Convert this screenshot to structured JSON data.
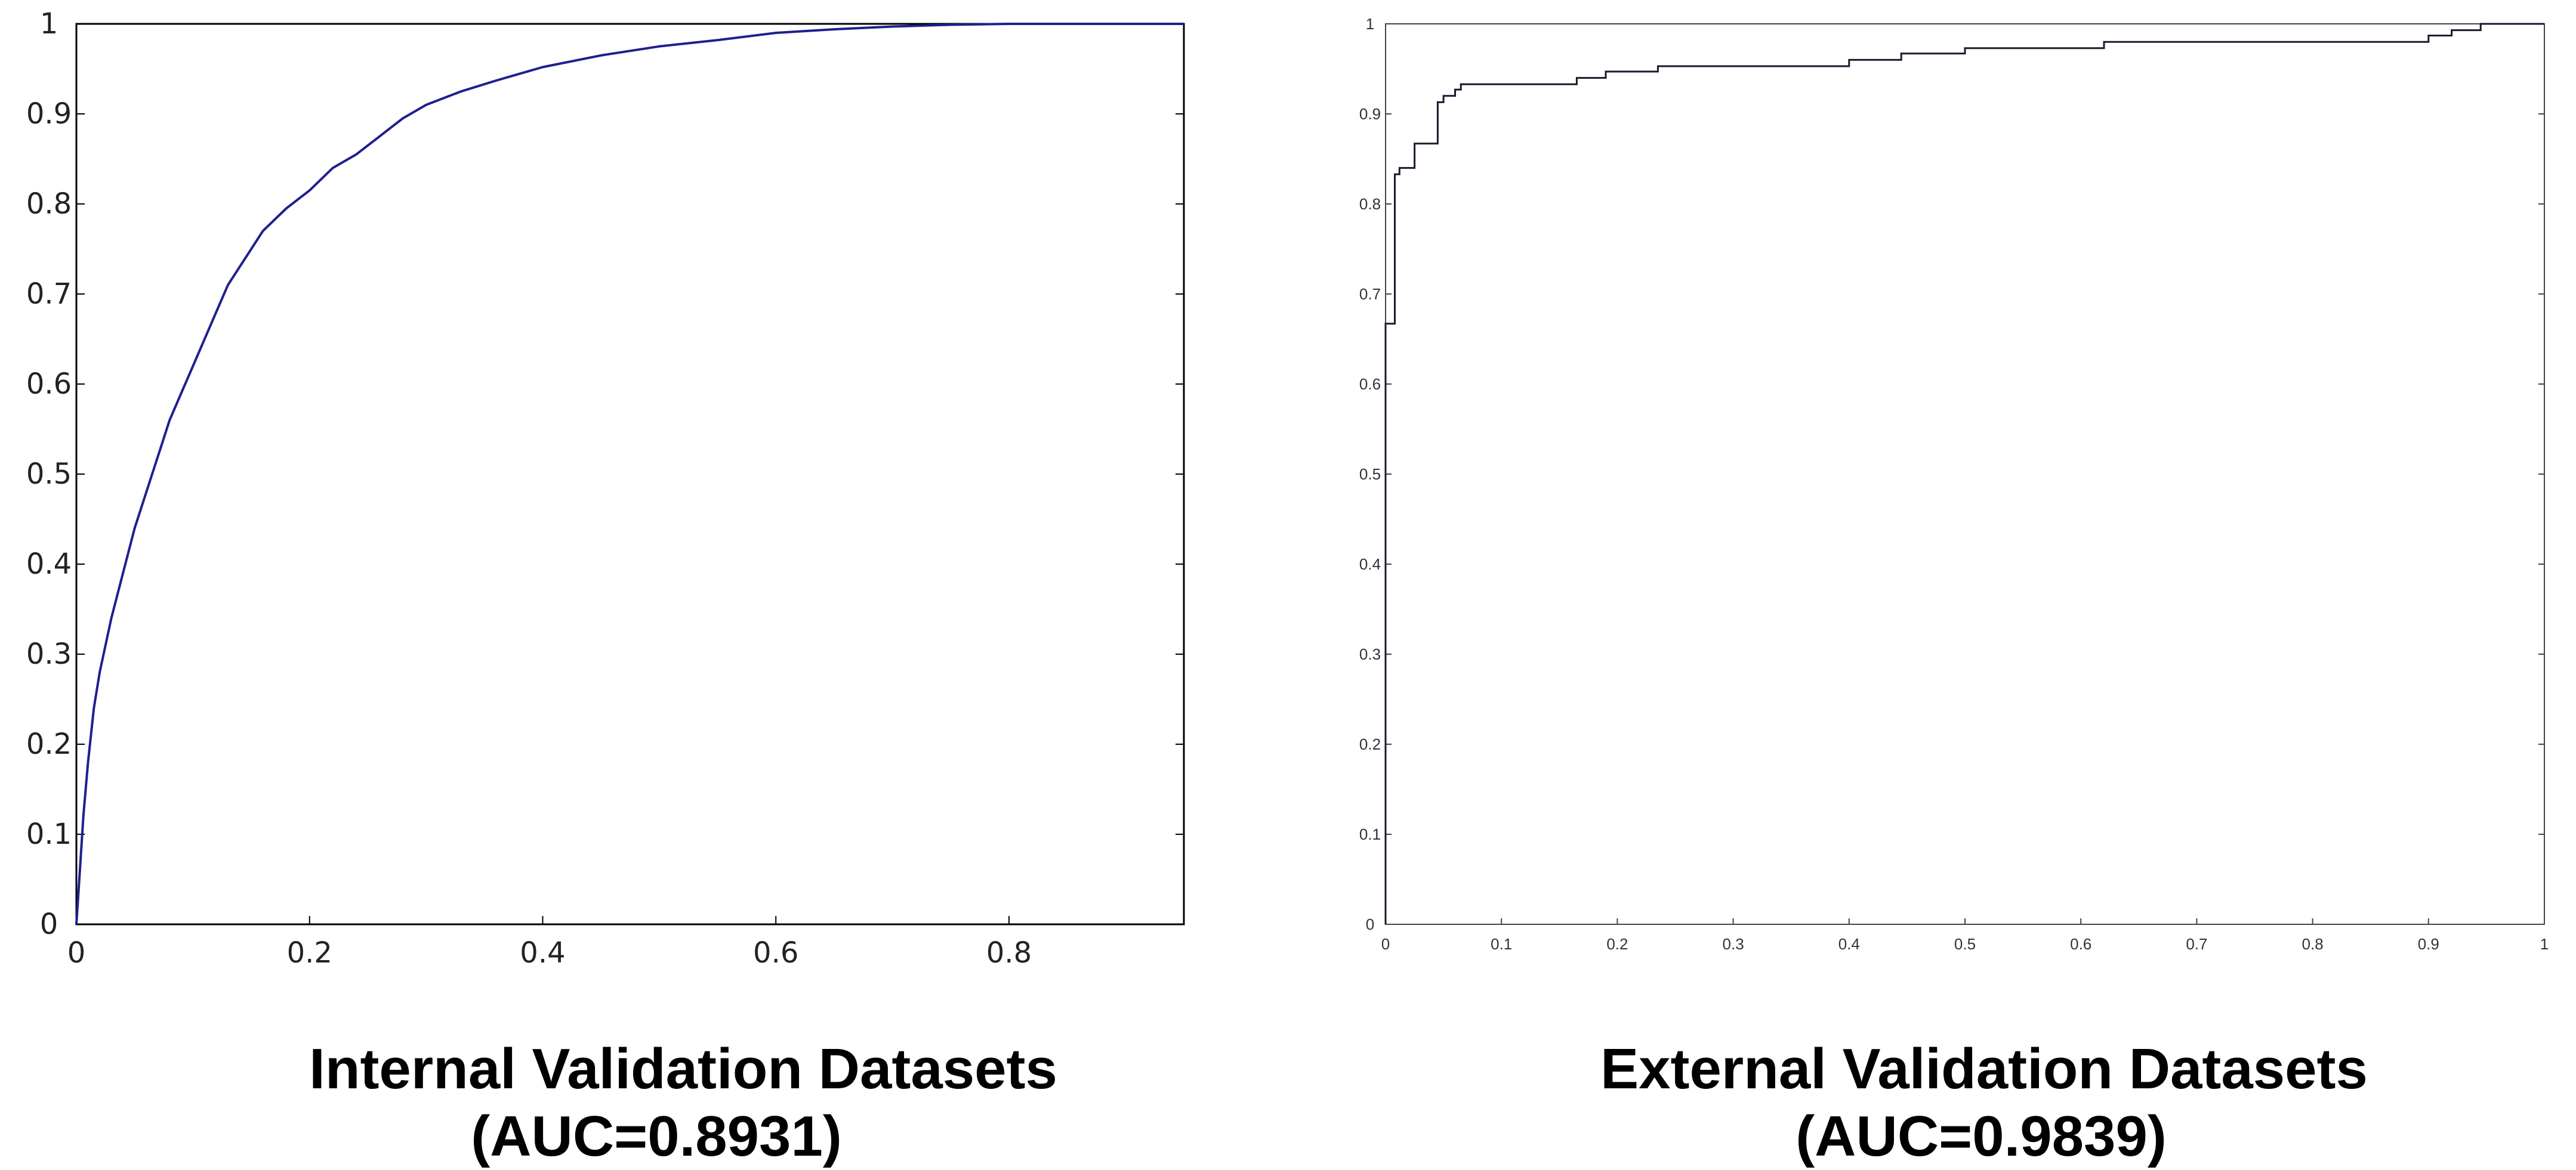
{
  "chart_data": [
    {
      "type": "line",
      "title": "Internal Validation Datasets",
      "subtitle": "(AUC=0.8931)",
      "xlabel": "",
      "ylabel": "",
      "xlim": [
        0,
        0.95
      ],
      "ylim": [
        0,
        1
      ],
      "grid": false,
      "x_ticks": [
        {
          "value": 0,
          "label": "0"
        },
        {
          "value": 0.2,
          "label": "0.2"
        },
        {
          "value": 0.4,
          "label": "0.4"
        },
        {
          "value": 0.6,
          "label": "0.6"
        },
        {
          "value": 0.8,
          "label": "0.8"
        }
      ],
      "y_ticks": [
        {
          "value": 0,
          "label": "0"
        },
        {
          "value": 0.1,
          "label": "0.1"
        },
        {
          "value": 0.2,
          "label": "0.2"
        },
        {
          "value": 0.3,
          "label": "0.3"
        },
        {
          "value": 0.4,
          "label": "0.4"
        },
        {
          "value": 0.5,
          "label": "0.5"
        },
        {
          "value": 0.6,
          "label": "0.6"
        },
        {
          "value": 0.7,
          "label": "0.7"
        },
        {
          "value": 0.8,
          "label": "0.8"
        },
        {
          "value": 0.9,
          "label": "0.9"
        },
        {
          "value": 1,
          "label": "1"
        }
      ],
      "series": [
        {
          "color": "#1f1f8f",
          "step": false,
          "points": [
            [
              0,
              0
            ],
            [
              0.003,
              0.06
            ],
            [
              0.006,
              0.12
            ],
            [
              0.01,
              0.18
            ],
            [
              0.015,
              0.24
            ],
            [
              0.02,
              0.28
            ],
            [
              0.03,
              0.34
            ],
            [
              0.04,
              0.39
            ],
            [
              0.05,
              0.44
            ],
            [
              0.06,
              0.48
            ],
            [
              0.07,
              0.52
            ],
            [
              0.08,
              0.56
            ],
            [
              0.09,
              0.59
            ],
            [
              0.1,
              0.62
            ],
            [
              0.11,
              0.65
            ],
            [
              0.12,
              0.68
            ],
            [
              0.13,
              0.71
            ],
            [
              0.14,
              0.73
            ],
            [
              0.15,
              0.75
            ],
            [
              0.16,
              0.77
            ],
            [
              0.18,
              0.795
            ],
            [
              0.2,
              0.815
            ],
            [
              0.22,
              0.84
            ],
            [
              0.24,
              0.855
            ],
            [
              0.26,
              0.875
            ],
            [
              0.28,
              0.895
            ],
            [
              0.3,
              0.91
            ],
            [
              0.33,
              0.925
            ],
            [
              0.36,
              0.937
            ],
            [
              0.4,
              0.952
            ],
            [
              0.45,
              0.965
            ],
            [
              0.5,
              0.975
            ],
            [
              0.55,
              0.982
            ],
            [
              0.6,
              0.99
            ],
            [
              0.65,
              0.994
            ],
            [
              0.7,
              0.997
            ],
            [
              0.75,
              0.999
            ],
            [
              0.8,
              1.0
            ],
            [
              0.95,
              1.0
            ]
          ]
        }
      ]
    },
    {
      "type": "line",
      "title": "External Validation Datasets",
      "subtitle": "(AUC=0.9839)",
      "xlabel": "",
      "ylabel": "",
      "xlim": [
        0,
        1
      ],
      "ylim": [
        0,
        1
      ],
      "grid": false,
      "x_ticks": [
        {
          "value": 0,
          "label": "0"
        },
        {
          "value": 0.1,
          "label": "0.1"
        },
        {
          "value": 0.2,
          "label": "0.2"
        },
        {
          "value": 0.3,
          "label": "0.3"
        },
        {
          "value": 0.4,
          "label": "0.4"
        },
        {
          "value": 0.5,
          "label": "0.5"
        },
        {
          "value": 0.6,
          "label": "0.6"
        },
        {
          "value": 0.7,
          "label": "0.7"
        },
        {
          "value": 0.8,
          "label": "0.8"
        },
        {
          "value": 0.9,
          "label": "0.9"
        },
        {
          "value": 1,
          "label": "1"
        }
      ],
      "y_ticks": [
        {
          "value": 0,
          "label": "0"
        },
        {
          "value": 0.1,
          "label": "0.1"
        },
        {
          "value": 0.2,
          "label": "0.2"
        },
        {
          "value": 0.3,
          "label": "0.3"
        },
        {
          "value": 0.4,
          "label": "0.4"
        },
        {
          "value": 0.5,
          "label": "0.5"
        },
        {
          "value": 0.6,
          "label": "0.6"
        },
        {
          "value": 0.7,
          "label": "0.7"
        },
        {
          "value": 0.8,
          "label": "0.8"
        },
        {
          "value": 0.9,
          "label": "0.9"
        },
        {
          "value": 1,
          "label": "1"
        }
      ],
      "series": [
        {
          "color": "#1a1a2e",
          "step": true,
          "points": [
            [
              0,
              0
            ],
            [
              0,
              0.667
            ],
            [
              0.008,
              0.667
            ],
            [
              0.008,
              0.833
            ],
            [
              0.012,
              0.833
            ],
            [
              0.012,
              0.84
            ],
            [
              0.025,
              0.84
            ],
            [
              0.025,
              0.867
            ],
            [
              0.045,
              0.867
            ],
            [
              0.045,
              0.913
            ],
            [
              0.05,
              0.913
            ],
            [
              0.05,
              0.92
            ],
            [
              0.06,
              0.92
            ],
            [
              0.06,
              0.927
            ],
            [
              0.065,
              0.927
            ],
            [
              0.065,
              0.933
            ],
            [
              0.165,
              0.933
            ],
            [
              0.165,
              0.94
            ],
            [
              0.19,
              0.94
            ],
            [
              0.19,
              0.947
            ],
            [
              0.235,
              0.947
            ],
            [
              0.235,
              0.953
            ],
            [
              0.4,
              0.953
            ],
            [
              0.4,
              0.96
            ],
            [
              0.445,
              0.96
            ],
            [
              0.445,
              0.967
            ],
            [
              0.5,
              0.967
            ],
            [
              0.5,
              0.973
            ],
            [
              0.62,
              0.973
            ],
            [
              0.62,
              0.98
            ],
            [
              0.9,
              0.98
            ],
            [
              0.9,
              0.987
            ],
            [
              0.92,
              0.987
            ],
            [
              0.92,
              0.993
            ],
            [
              0.945,
              0.993
            ],
            [
              0.945,
              1.0
            ],
            [
              1,
              1.0
            ]
          ]
        }
      ]
    }
  ]
}
